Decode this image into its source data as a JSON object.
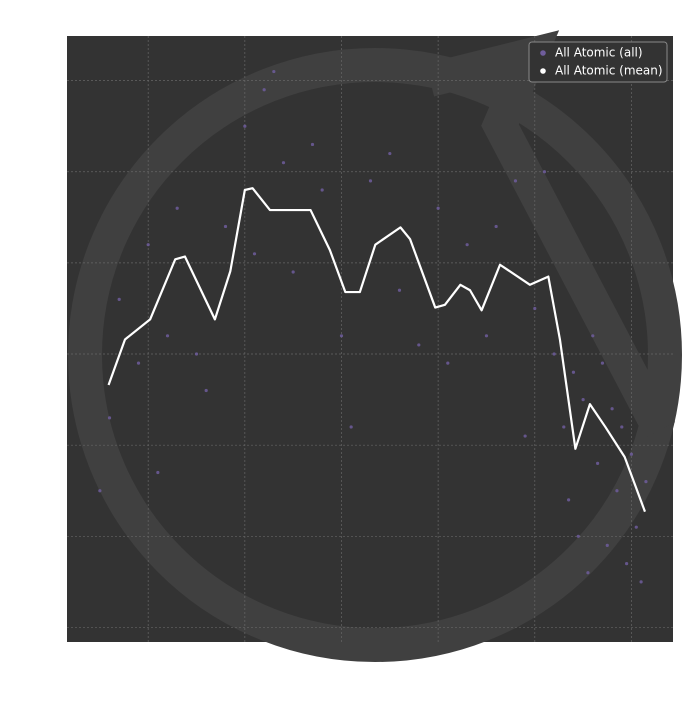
{
  "chart_data": {
    "type": "scatter",
    "xlim": [
      0.16,
      6.43
    ],
    "ylim": [
      -0.16,
      6.49
    ],
    "xticks": [
      1,
      2,
      3,
      4,
      5,
      6
    ],
    "yticks": [
      0,
      1,
      2,
      3,
      4,
      5,
      6
    ],
    "grid": true,
    "legend": "upper right",
    "series": [
      {
        "name": "All Atomic (all)",
        "color": "#6f5d9c",
        "x": [
          0.5,
          0.6,
          0.7,
          0.9,
          1.0,
          1.2,
          1.3,
          1.5,
          1.6,
          1.8,
          2.0,
          2.1,
          2.2,
          2.4,
          2.5,
          2.7,
          2.8,
          3.0,
          3.1,
          3.3,
          3.5,
          3.6,
          3.8,
          4.0,
          4.1,
          4.3,
          4.5,
          4.6,
          4.8,
          5.0,
          5.1,
          5.2,
          5.3,
          5.35,
          5.4,
          5.45,
          5.5,
          5.55,
          5.6,
          5.65,
          5.7,
          5.75,
          5.8,
          5.85,
          5.9,
          5.95,
          6.0,
          6.05,
          6.1,
          6.15,
          4.9,
          1.1,
          2.3
        ],
        "values": [
          1.5,
          2.3,
          3.6,
          2.9,
          4.2,
          3.2,
          4.6,
          3.0,
          2.6,
          4.4,
          5.5,
          4.1,
          5.9,
          5.1,
          3.9,
          5.3,
          4.8,
          3.2,
          2.2,
          4.9,
          5.2,
          3.7,
          3.1,
          4.6,
          2.9,
          4.2,
          3.2,
          4.4,
          4.9,
          3.5,
          5.0,
          3.0,
          2.2,
          1.4,
          2.8,
          1.0,
          2.5,
          0.6,
          3.2,
          1.8,
          2.9,
          0.9,
          2.4,
          1.5,
          2.2,
          0.7,
          1.9,
          1.1,
          0.5,
          1.6,
          2.1,
          1.7,
          6.1
        ]
      },
      {
        "name": "All Atomic (mean)",
        "color": "#ffffff",
        "x": [
          0.59,
          0.76,
          1.02,
          1.28,
          1.38,
          1.69,
          1.85,
          2.0,
          2.08,
          2.26,
          2.68,
          2.88,
          3.04,
          3.19,
          3.35,
          3.61,
          3.71,
          3.97,
          4.07,
          4.23,
          4.33,
          4.45,
          4.64,
          4.95,
          5.14,
          5.26,
          5.42,
          5.57,
          5.73,
          5.93,
          6.14
        ],
        "values": [
          2.66,
          3.16,
          3.38,
          4.04,
          4.07,
          3.38,
          3.91,
          4.8,
          4.82,
          4.58,
          4.58,
          4.14,
          3.68,
          3.68,
          4.2,
          4.39,
          4.26,
          3.51,
          3.54,
          3.76,
          3.7,
          3.48,
          3.98,
          3.76,
          3.85,
          3.16,
          1.96,
          2.45,
          2.2,
          1.87,
          1.27
        ]
      }
    ]
  }
}
